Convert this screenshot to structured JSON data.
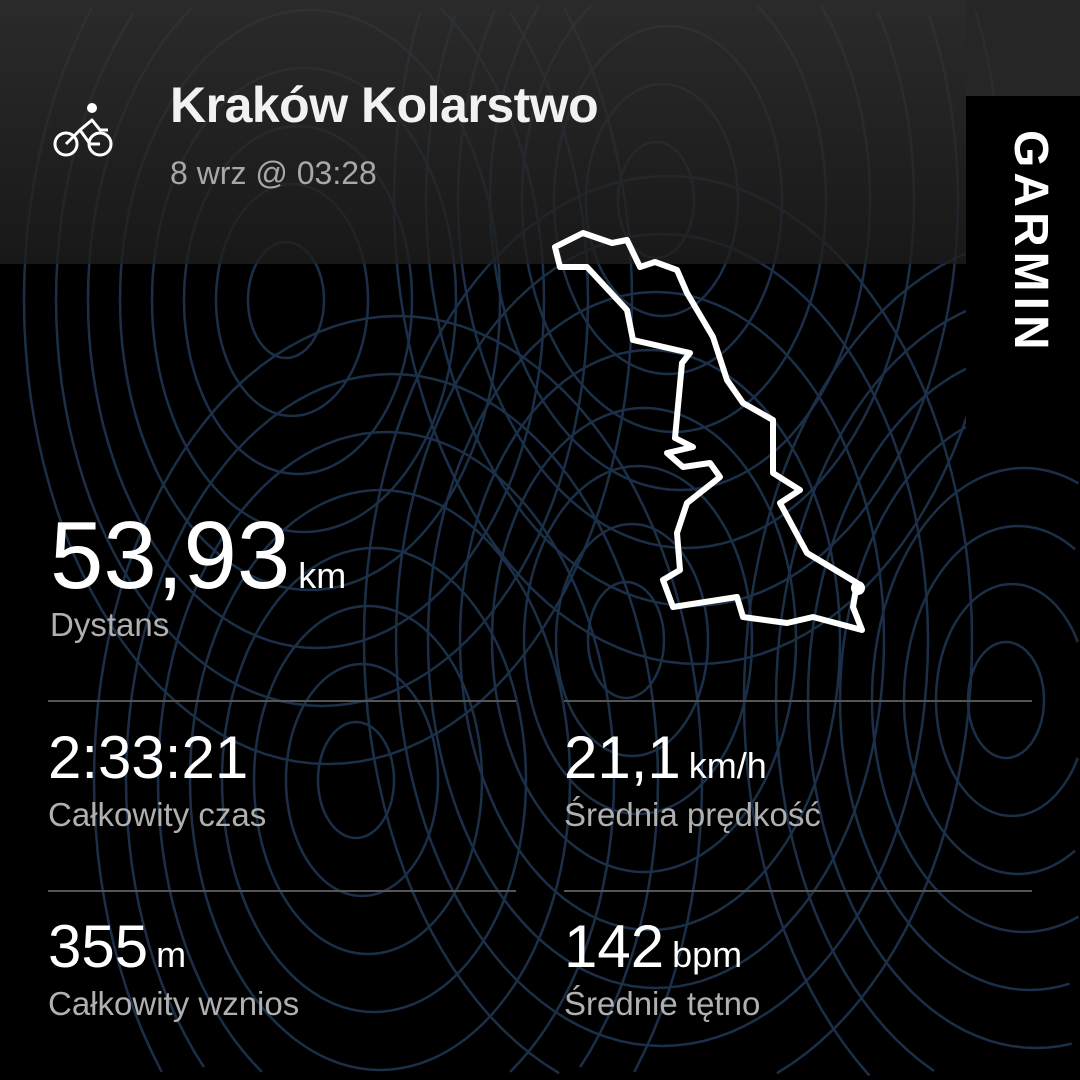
{
  "activity": {
    "icon": "bicycle-icon",
    "title": "Kraków Kolarstwo",
    "date": "8 wrz @ 03:28"
  },
  "brand": {
    "logo": "GARMIN"
  },
  "stats": {
    "distance": {
      "value": "53,93",
      "unit": "km",
      "label": "Dystans"
    },
    "time": {
      "value": "2:33:21",
      "unit": "",
      "label": "Całkowity czas"
    },
    "speed": {
      "value": "21,1",
      "unit": "km/h",
      "label": "Średnia prędkość"
    },
    "ascent": {
      "value": "355",
      "unit": "m",
      "label": "Całkowity wznios"
    },
    "heart_rate": {
      "value": "142",
      "unit": "bpm",
      "label": "Średnie tętno"
    }
  },
  "colors": {
    "background": "#000000",
    "contour": "#1c3550",
    "route": "#ffffff"
  }
}
